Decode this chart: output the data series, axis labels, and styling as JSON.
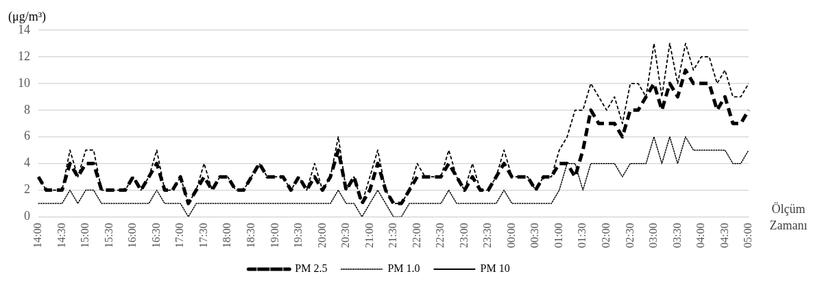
{
  "chart_data": {
    "type": "line",
    "xlabel": "Ölçüm Zamanı",
    "ylabel": "(μg/m³)",
    "categories": [
      "14:00",
      null,
      null,
      "14:30",
      null,
      null,
      "15:00",
      null,
      null,
      "15:30",
      null,
      null,
      "16:00",
      null,
      null,
      "16:30",
      null,
      null,
      "17:00",
      null,
      null,
      "17:30",
      null,
      null,
      "18:00",
      null,
      null,
      "18:30",
      null,
      null,
      "19:00",
      null,
      null,
      "19:30",
      null,
      null,
      "20:00",
      null,
      null,
      "20:30",
      null,
      null,
      "21:00",
      null,
      null,
      "21:30",
      null,
      null,
      "22:00",
      null,
      null,
      "22:30",
      null,
      null,
      "23:00",
      null,
      null,
      "23:30",
      null,
      null,
      "00:00",
      null,
      null,
      "00:30",
      null,
      null,
      "01:00",
      null,
      null,
      "01:30",
      null,
      null,
      "02:00",
      null,
      null,
      "02:30",
      null,
      null,
      "03:00",
      null,
      null,
      "03:30",
      null,
      null,
      "04:00",
      null,
      null,
      "04:30",
      null,
      null,
      "05:00"
    ],
    "series": [
      {
        "name": "PM 2.5",
        "color": "#000000",
        "line_style": "dashed",
        "values": [
          3,
          2,
          2,
          2,
          4,
          3,
          4,
          4,
          2,
          2,
          2,
          2,
          3,
          2,
          3,
          4,
          2,
          2,
          3,
          1,
          2,
          3,
          2,
          3,
          3,
          2,
          2,
          3,
          4,
          3,
          3,
          3,
          2,
          3,
          2,
          3,
          2,
          3,
          5,
          2,
          3,
          1,
          2,
          4,
          2,
          1,
          1,
          2,
          3,
          3,
          3,
          3,
          4,
          3,
          2,
          3,
          2,
          2,
          3,
          4,
          3,
          3,
          3,
          2,
          3,
          3,
          4,
          4,
          3,
          5,
          8,
          7,
          7,
          7,
          6,
          8,
          8,
          9,
          10,
          8,
          10,
          9,
          11,
          10,
          10,
          10,
          8,
          9,
          7,
          7,
          8
        ]
      },
      {
        "name": "PM 1.0",
        "color": "#000000",
        "line_style": "dotted",
        "values": [
          1,
          1,
          1,
          1,
          2,
          1,
          2,
          2,
          1,
          1,
          1,
          1,
          1,
          1,
          1,
          2,
          1,
          1,
          1,
          0,
          1,
          1,
          1,
          1,
          1,
          1,
          1,
          1,
          1,
          1,
          1,
          1,
          1,
          1,
          1,
          1,
          1,
          1,
          2,
          1,
          1,
          0,
          1,
          2,
          1,
          0,
          0,
          1,
          1,
          1,
          1,
          1,
          2,
          1,
          1,
          1,
          1,
          1,
          1,
          2,
          1,
          1,
          1,
          1,
          1,
          1,
          2,
          4,
          4,
          2,
          4,
          4,
          4,
          4,
          3,
          4,
          4,
          4,
          6,
          4,
          6,
          4,
          6,
          5,
          5,
          5,
          5,
          5,
          4,
          4,
          5
        ]
      },
      {
        "name": "PM 10",
        "color": "#000000",
        "line_style": "dashed",
        "values": [
          3,
          2,
          2,
          2,
          5,
          3,
          5,
          5,
          2,
          2,
          2,
          2,
          3,
          2,
          3,
          5,
          2,
          2,
          3,
          1,
          2,
          4,
          2,
          3,
          3,
          2,
          2,
          3,
          4,
          3,
          3,
          3,
          2,
          3,
          2,
          4,
          2,
          3,
          6,
          2,
          3,
          1,
          3,
          5,
          2,
          1,
          1,
          2,
          4,
          3,
          3,
          3,
          5,
          3,
          2,
          4,
          2,
          2,
          3,
          5,
          3,
          3,
          3,
          2,
          3,
          3,
          5,
          6,
          8,
          8,
          10,
          9,
          8,
          9,
          7,
          10,
          10,
          9,
          13,
          9,
          13,
          10,
          13,
          11,
          12,
          12,
          10,
          11,
          9,
          9,
          10
        ]
      }
    ],
    "ylim": [
      0,
      14
    ],
    "yticks": [
      0,
      2,
      4,
      6,
      8,
      10,
      12,
      14
    ],
    "grid": "y",
    "legend": "bottom",
    "marker": "none"
  }
}
